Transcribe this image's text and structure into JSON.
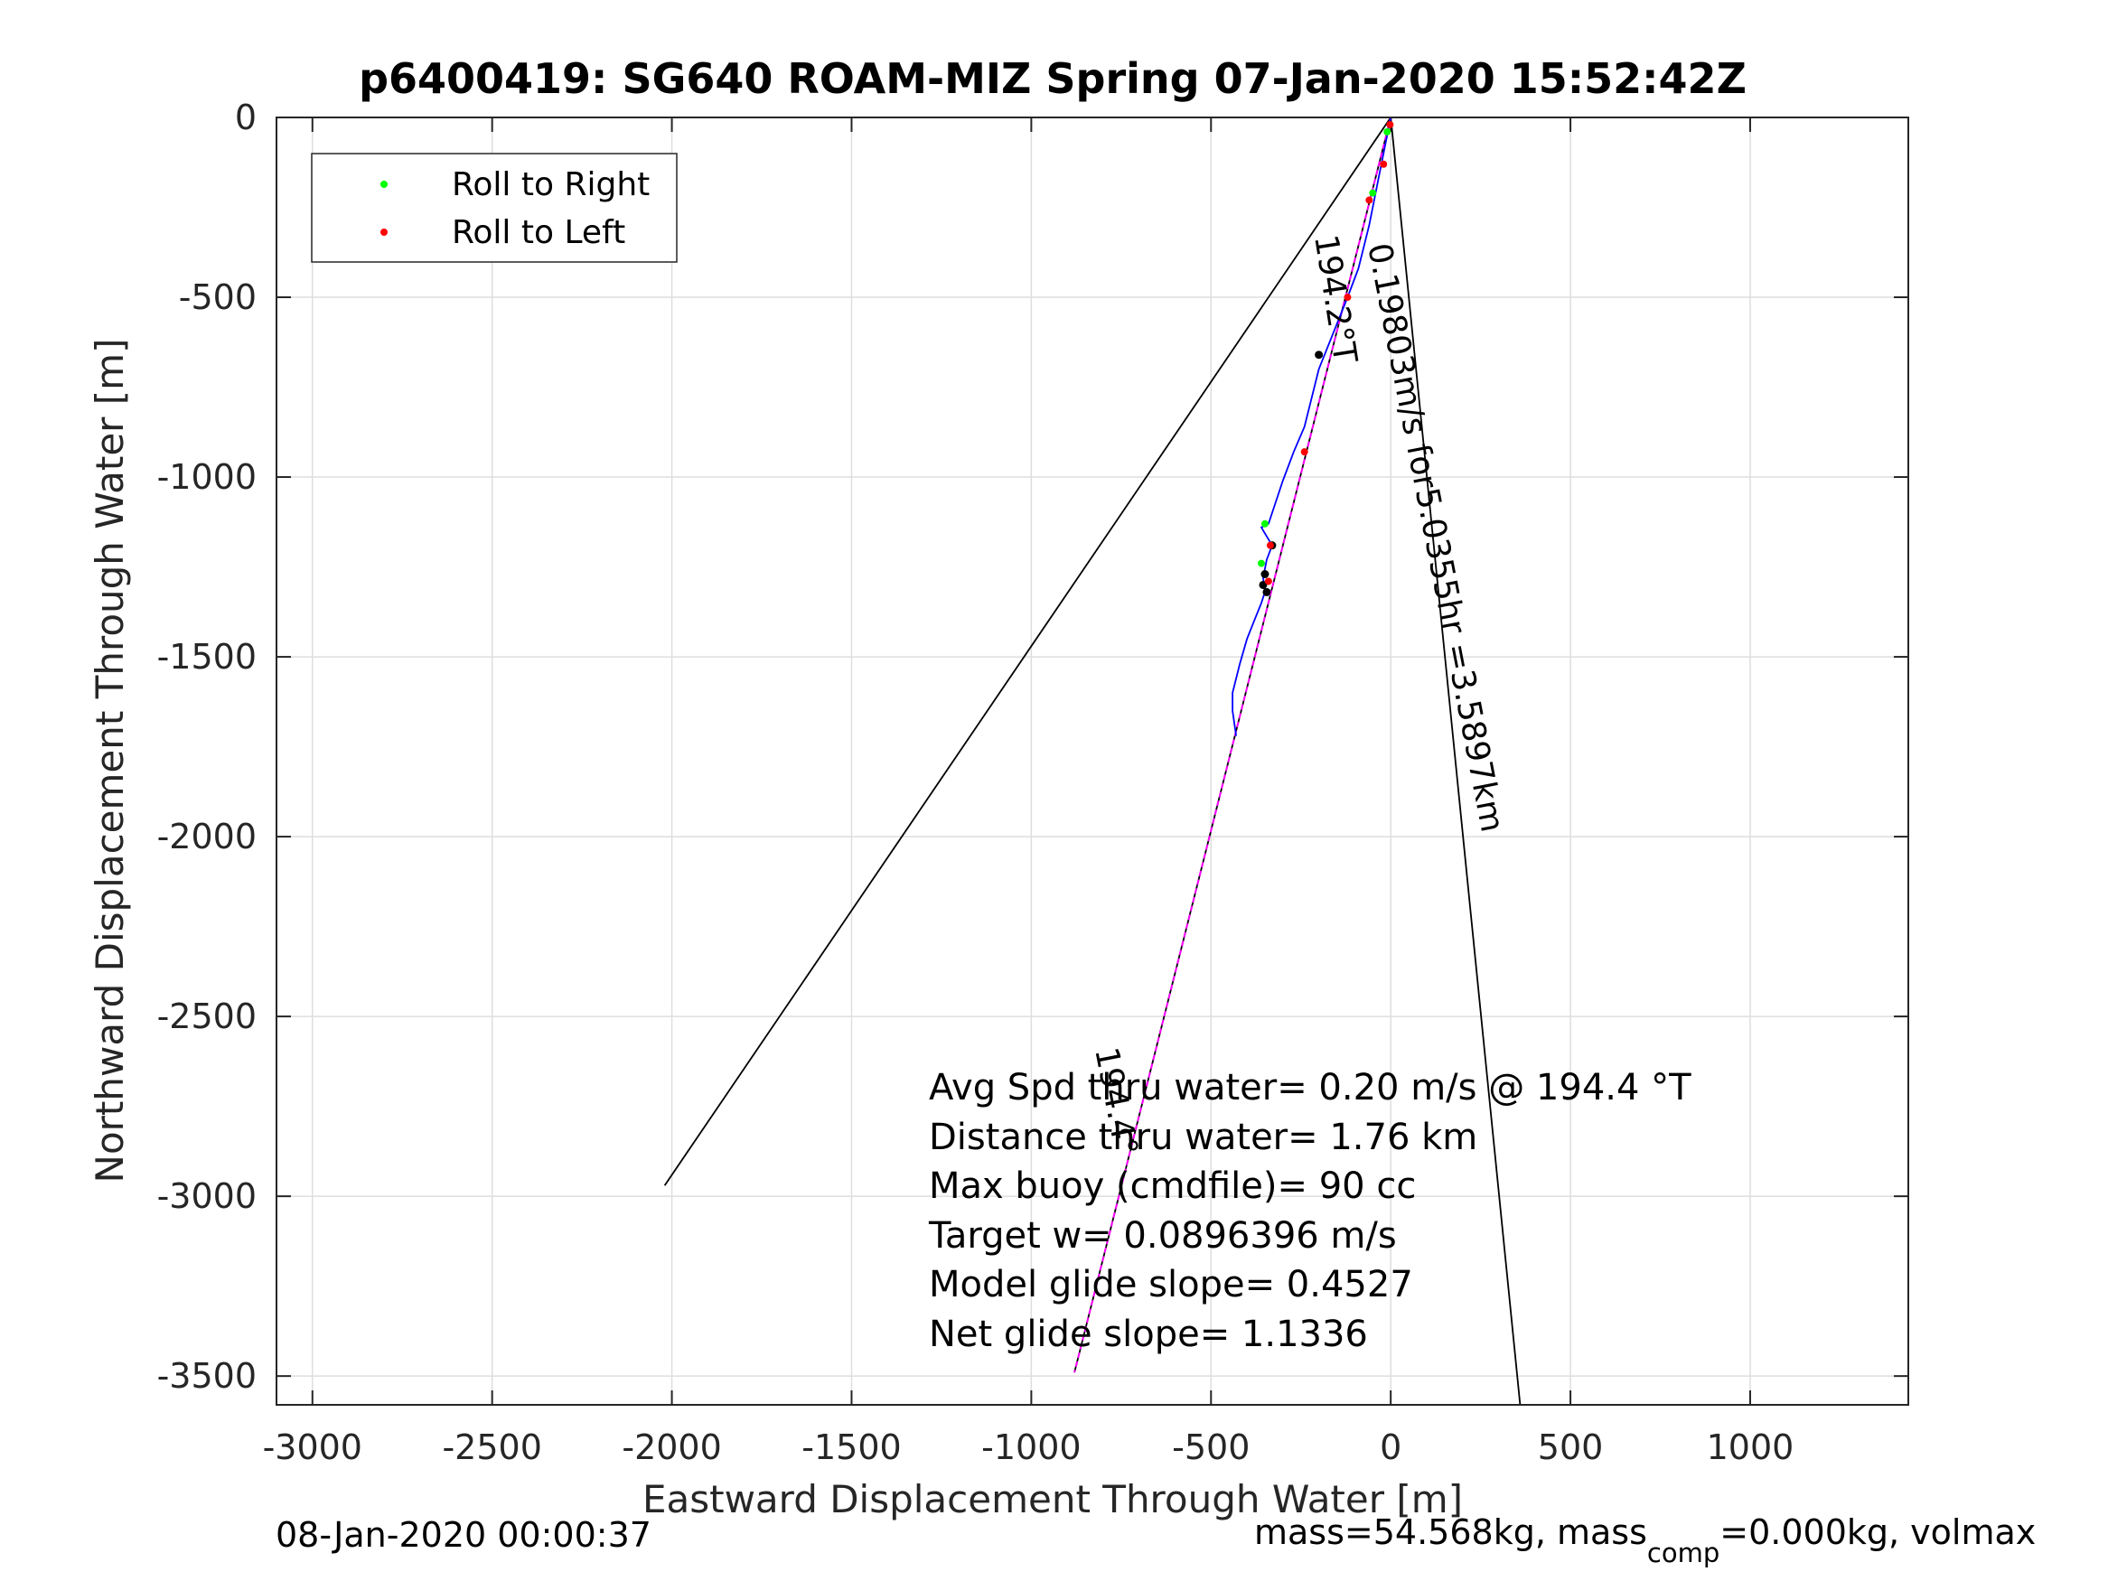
{
  "chart_data": {
    "type": "line",
    "title": "p6400419: SG640 ROAM-MIZ Spring 07-Jan-2020 15:52:42Z",
    "xlabel": "Eastward Displacement Through Water [m]",
    "ylabel": "Northward Displacement Through Water [m]",
    "xlim": [
      -3100,
      1440
    ],
    "ylim": [
      -3580,
      0
    ],
    "xticks": [
      -3000,
      -2500,
      -2000,
      -1500,
      -1000,
      -500,
      0,
      500,
      1000
    ],
    "yticks": [
      0,
      -500,
      -1000,
      -1500,
      -2000,
      -2500,
      -3000,
      -3500
    ],
    "xtick_labels": [
      "-3000",
      "-2500",
      "-2000",
      "-1500",
      "-1000",
      "-500",
      "0",
      "500",
      "1000"
    ],
    "ytick_labels": [
      "0",
      "-500",
      "-1000",
      "-1500",
      "-2000",
      "-2500",
      "-3000",
      "-3500"
    ],
    "grid": true,
    "legend_position": "top-left",
    "legend": [
      {
        "label": "Roll to Right",
        "color": "#00ff00"
      },
      {
        "label": "Roll to Left",
        "color": "#ff0000"
      }
    ],
    "series": [
      {
        "color": "#000000",
        "x": [
          0,
          -2020
        ],
        "y": [
          0,
          -2970
        ]
      },
      {
        "color": "#000000",
        "x": [
          0,
          360
        ],
        "y": [
          0,
          -3580
        ]
      },
      {
        "color": "#000000",
        "x": [
          0,
          -880
        ],
        "y": [
          0,
          -3490
        ]
      },
      {
        "color": "#ff00ff",
        "x": [
          0,
          -880
        ],
        "y": [
          0,
          -3490
        ]
      },
      {
        "color": "#0000ff",
        "x": [
          0,
          -10,
          -30,
          -60,
          -90,
          -120,
          -160,
          -200,
          -240,
          -270,
          -300,
          -340,
          -360,
          -330,
          -345,
          -355,
          -350,
          -360,
          -380,
          -400,
          -420,
          -440,
          -440,
          -430
        ],
        "y": [
          0,
          -50,
          -150,
          -300,
          -420,
          -500,
          -600,
          -700,
          -860,
          -930,
          -1010,
          -1130,
          -1140,
          -1190,
          -1230,
          -1280,
          -1320,
          -1350,
          -1400,
          -1450,
          -1520,
          -1600,
          -1650,
          -1720
        ]
      }
    ],
    "roll_right": {
      "x": [
        -10,
        -50,
        -350,
        -360
      ],
      "y": [
        -40,
        -210,
        -1130,
        -1240
      ]
    },
    "roll_left": {
      "x": [
        -2,
        -20,
        -60,
        -120,
        -240,
        -335,
        -340
      ],
      "y": [
        -20,
        -130,
        -230,
        -500,
        -930,
        -1190,
        -1290
      ]
    },
    "dark_points": {
      "x": [
        -200,
        -330,
        -350,
        -355,
        -345
      ],
      "y": [
        -660,
        -1190,
        -1270,
        -1300,
        -1320
      ]
    },
    "annotations": {
      "heading_short": "194.2°T",
      "speed_leg": "0.19803m/s for5.0355hr =3.5897km",
      "heading_long": "194.4°"
    },
    "stats": [
      "Avg Spd thru water=  0.20 m/s @ 194.4 °T",
      "Distance thru water=  1.76 km",
      "Max buoy (cmdfile)= 90 cc",
      "Target w= 0.0896396 m/s",
      "Model glide slope= 0.4527",
      "Net glide slope= 1.1336"
    ]
  },
  "footer": {
    "timestamp": "08-Jan-2020 00:00:37",
    "mass_prefix": "mass=54.568kg, mass",
    "mass_sub": "comp",
    "mass_suffix": "=0.000kg, volmax"
  }
}
